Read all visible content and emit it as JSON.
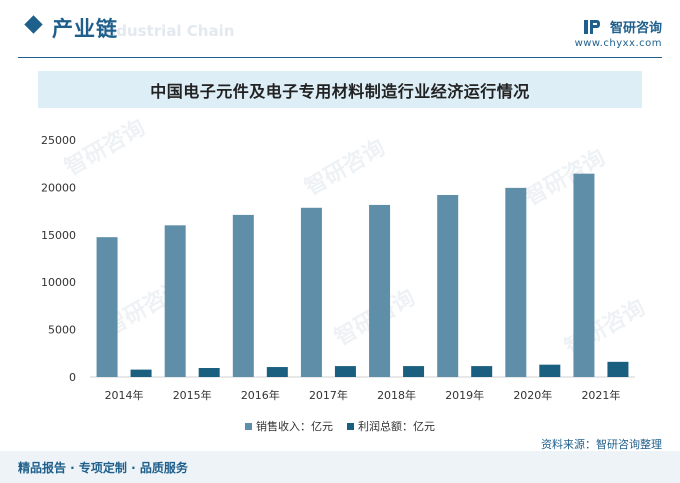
{
  "header": {
    "section_title": "产业链",
    "section_subtitle": "Industrial Chain",
    "brand_name": "智研咨询",
    "brand_url": "www.chyxx.com"
  },
  "colors": {
    "accent": "#1f5f8b",
    "sales_bar": "#5f8fa8",
    "profit_bar": "#1a5f80",
    "title_band": "#deeef7"
  },
  "chart_data": {
    "type": "bar",
    "title": "中国电子元件及电子专用材料制造行业经济运行情况",
    "categories": [
      "2014年",
      "2015年",
      "2016年",
      "2017年",
      "2018年",
      "2019年",
      "2020年",
      "2021年"
    ],
    "series": [
      {
        "name": "销售收入：亿元",
        "values": [
          14750,
          16000,
          17100,
          17850,
          18150,
          19200,
          19950,
          21450
        ]
      },
      {
        "name": "利润总额：亿元",
        "values": [
          780,
          950,
          1050,
          1150,
          1150,
          1150,
          1300,
          1600
        ]
      }
    ],
    "ylim": [
      0,
      25000
    ],
    "yticks": [
      "0",
      "5000",
      "10000",
      "15000",
      "20000",
      "25000"
    ],
    "legend_position": "bottom",
    "grid": false
  },
  "source": "资料来源：智研咨询整理",
  "footer": "精品报告 · 专项定制 · 品质服务"
}
